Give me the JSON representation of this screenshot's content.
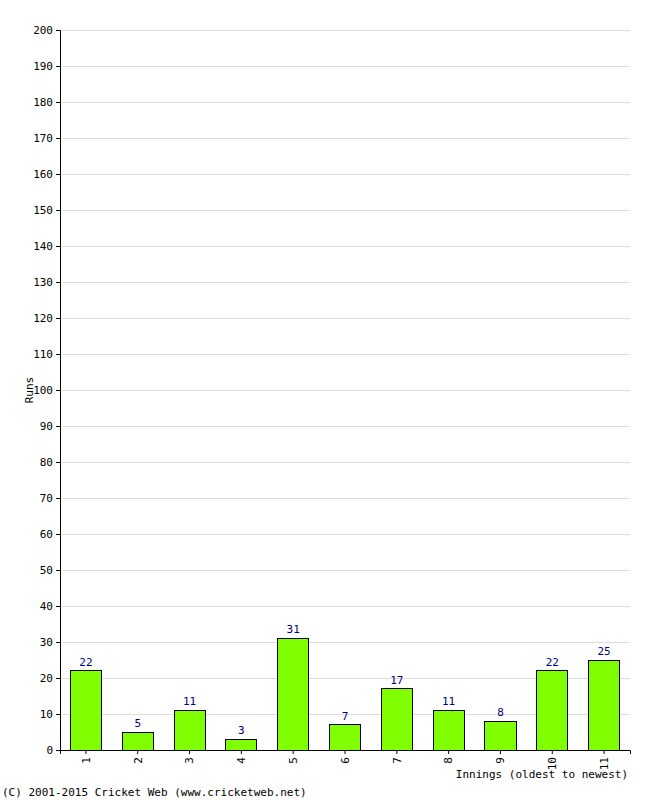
{
  "chart_data": {
    "type": "bar",
    "x_label": "Innings (oldest to newest)",
    "y_label": "Runs",
    "annotations": [
      "(C) 2001-2015 Cricket Web (www.cricketweb.net)"
    ],
    "categories": [
      "1",
      "2",
      "3",
      "4",
      "5",
      "6",
      "7",
      "8",
      "9",
      "10",
      "11"
    ],
    "values": [
      22,
      5,
      11,
      3,
      31,
      7,
      17,
      11,
      8,
      22,
      25
    ],
    "color": "#7fff00",
    "ylim": [
      0,
      200
    ],
    "yticks": [
      0,
      10,
      20,
      30,
      40,
      50,
      60,
      70,
      80,
      90,
      100,
      110,
      120,
      130,
      140,
      150,
      160,
      170,
      180,
      190,
      200
    ],
    "grid": true,
    "data_labels": true
  }
}
